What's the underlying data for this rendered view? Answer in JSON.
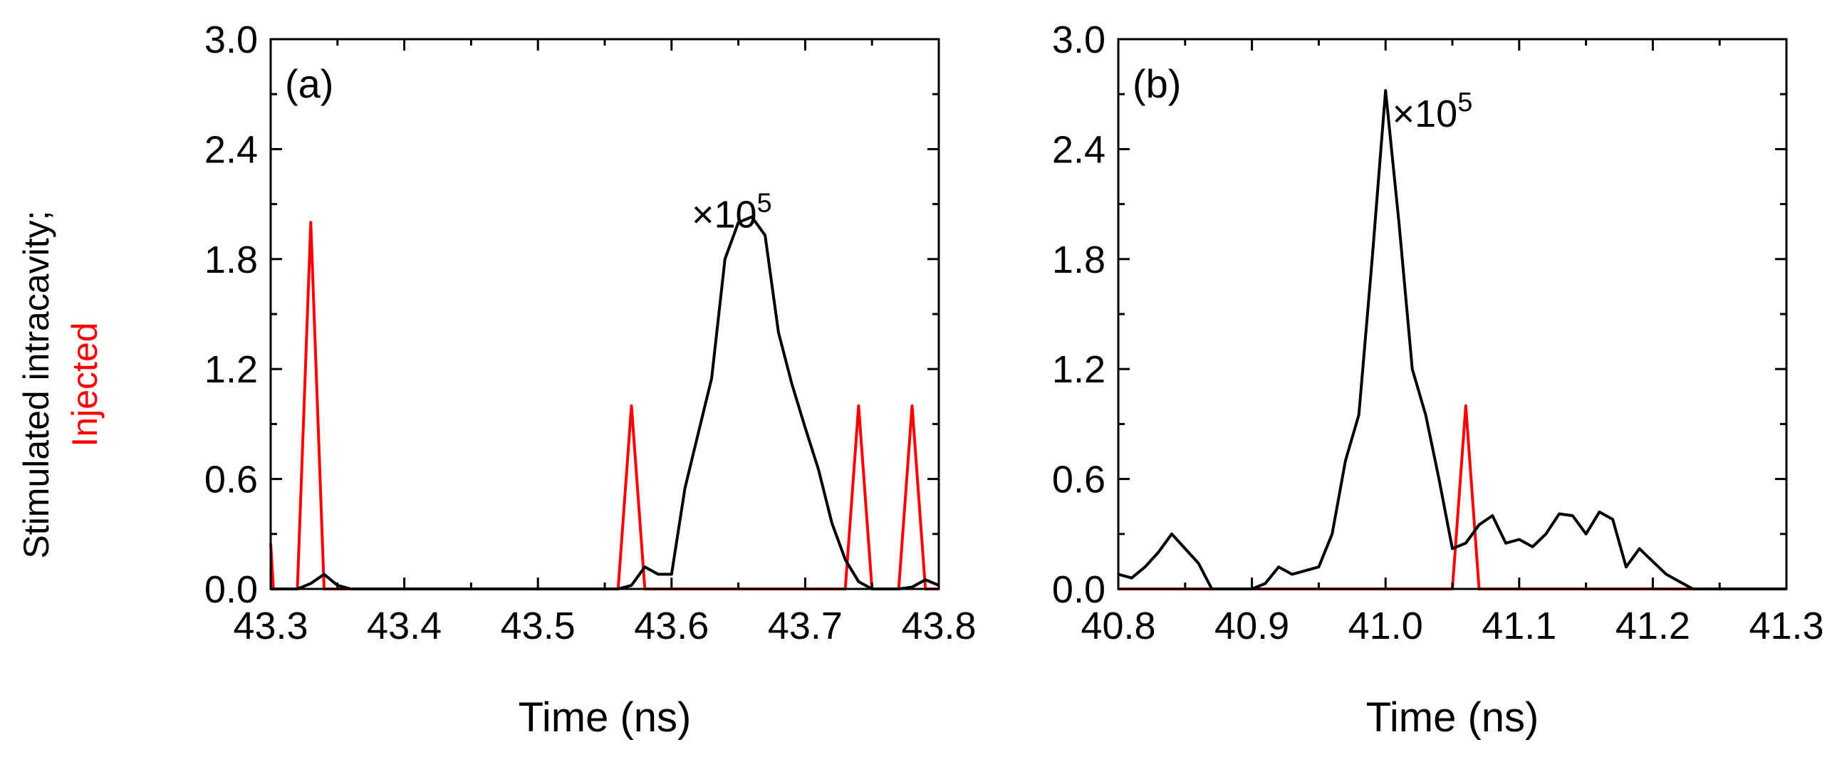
{
  "y_axis_label": {
    "line1": "Stimulated intracavity;",
    "line2": "Injected",
    "line1_color": "#000000",
    "line2_color": "#ff0000"
  },
  "colors": {
    "stimulated": "#000000",
    "injected": "#ff0000"
  },
  "chart_data": [
    {
      "type": "line",
      "panel_label": "(a)",
      "annotation": {
        "prefix": "×10",
        "exponent": "5",
        "x": 43.615,
        "y": 2.05
      },
      "xlabel": "Time (ns)",
      "ylabel": "Stimulated intracavity; Injected",
      "xlim": [
        43.3,
        43.8
      ],
      "ylim": [
        0.0,
        3.0
      ],
      "xticks": [
        "43.3",
        "43.4",
        "43.5",
        "43.6",
        "43.7",
        "43.8"
      ],
      "yticks": [
        "0.0",
        "0.6",
        "1.2",
        "1.8",
        "2.4",
        "3.0"
      ],
      "series": [
        {
          "name": "Injected",
          "color": "#ff0000",
          "x": [
            43.3,
            43.302,
            43.31,
            43.32,
            43.33,
            43.34,
            43.35,
            43.55,
            43.56,
            43.57,
            43.58,
            43.59,
            43.72,
            43.73,
            43.74,
            43.75,
            43.76,
            43.77,
            43.78,
            43.79,
            43.8
          ],
          "y": [
            0.25,
            0.0,
            0.0,
            0.0,
            2.0,
            0.0,
            0.0,
            0.0,
            0.0,
            1.0,
            0.0,
            0.0,
            0.0,
            0.0,
            1.0,
            0.0,
            0.0,
            0.0,
            1.0,
            0.0,
            0.0
          ]
        },
        {
          "name": "Stimulated intracavity",
          "color": "#000000",
          "x": [
            43.3,
            43.32,
            43.33,
            43.34,
            43.35,
            43.36,
            43.56,
            43.57,
            43.58,
            43.59,
            43.6,
            43.61,
            43.62,
            43.63,
            43.64,
            43.65,
            43.66,
            43.67,
            43.68,
            43.69,
            43.7,
            43.71,
            43.72,
            43.73,
            43.74,
            43.75,
            43.76,
            43.77,
            43.78,
            43.79,
            43.8
          ],
          "y": [
            0.0,
            0.0,
            0.03,
            0.08,
            0.02,
            0.0,
            0.0,
            0.02,
            0.12,
            0.08,
            0.08,
            0.55,
            0.85,
            1.15,
            1.8,
            2.0,
            2.03,
            1.93,
            1.4,
            1.12,
            0.88,
            0.65,
            0.36,
            0.16,
            0.04,
            0.0,
            0.0,
            0.0,
            0.01,
            0.05,
            0.02
          ]
        }
      ]
    },
    {
      "type": "line",
      "panel_label": "(b)",
      "annotation": {
        "prefix": "×10",
        "exponent": "5",
        "x": 41.005,
        "y": 2.6
      },
      "xlabel": "Time (ns)",
      "ylabel": "",
      "xlim": [
        40.8,
        41.3
      ],
      "ylim": [
        0.0,
        3.0
      ],
      "xticks": [
        "40.8",
        "40.9",
        "41.0",
        "41.1",
        "41.2",
        "41.3"
      ],
      "yticks": [
        "0.0",
        "0.6",
        "1.2",
        "1.8",
        "2.4",
        "3.0"
      ],
      "series": [
        {
          "name": "Injected",
          "color": "#ff0000",
          "x": [
            40.8,
            41.05,
            41.06,
            41.07,
            41.3
          ],
          "y": [
            0.0,
            0.0,
            1.0,
            0.0,
            0.0
          ]
        },
        {
          "name": "Stimulated intracavity",
          "color": "#000000",
          "x": [
            40.8,
            40.81,
            40.82,
            40.83,
            40.84,
            40.85,
            40.86,
            40.87,
            40.9,
            40.91,
            40.92,
            40.93,
            40.94,
            40.95,
            40.96,
            40.97,
            40.98,
            40.99,
            41.0,
            41.01,
            41.02,
            41.03,
            41.04,
            41.05,
            41.06,
            41.07,
            41.08,
            41.09,
            41.1,
            41.11,
            41.12,
            41.13,
            41.14,
            41.15,
            41.16,
            41.17,
            41.18,
            41.19,
            41.2,
            41.21,
            41.22,
            41.23,
            41.3
          ],
          "y": [
            0.08,
            0.06,
            0.12,
            0.2,
            0.3,
            0.22,
            0.14,
            0.0,
            0.0,
            0.03,
            0.12,
            0.08,
            0.1,
            0.12,
            0.3,
            0.7,
            0.95,
            1.8,
            2.72,
            2.0,
            1.2,
            0.95,
            0.6,
            0.22,
            0.25,
            0.35,
            0.4,
            0.25,
            0.27,
            0.23,
            0.3,
            0.41,
            0.4,
            0.3,
            0.42,
            0.38,
            0.12,
            0.22,
            0.15,
            0.08,
            0.04,
            0.0,
            0.0
          ]
        }
      ]
    }
  ]
}
